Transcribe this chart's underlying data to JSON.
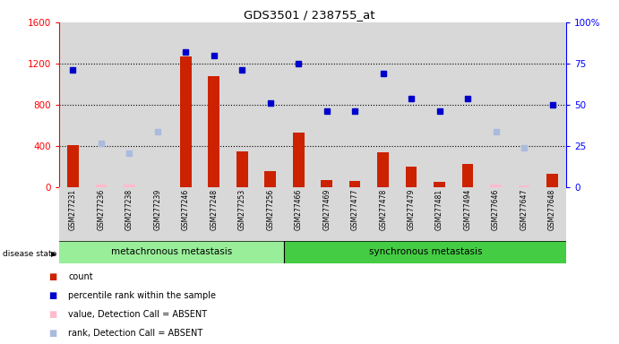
{
  "title": "GDS3501 / 238755_at",
  "samples": [
    "GSM277231",
    "GSM277236",
    "GSM277238",
    "GSM277239",
    "GSM277246",
    "GSM277248",
    "GSM277253",
    "GSM277256",
    "GSM277466",
    "GSM277469",
    "GSM277477",
    "GSM277478",
    "GSM277479",
    "GSM277481",
    "GSM277494",
    "GSM277646",
    "GSM277647",
    "GSM277648"
  ],
  "count_values": [
    410,
    null,
    null,
    null,
    1270,
    1080,
    350,
    155,
    530,
    70,
    60,
    340,
    205,
    55,
    230,
    null,
    null,
    130
  ],
  "count_absent": [
    null,
    30,
    30,
    null,
    null,
    null,
    null,
    null,
    null,
    null,
    null,
    null,
    null,
    null,
    null,
    30,
    20,
    null
  ],
  "rank_pct": [
    71,
    null,
    null,
    null,
    82,
    80,
    71,
    51,
    75,
    46,
    46,
    69,
    54,
    46,
    54,
    null,
    null,
    50
  ],
  "rank_absent_pct": [
    null,
    27,
    21,
    34,
    null,
    null,
    null,
    null,
    null,
    null,
    null,
    null,
    null,
    null,
    null,
    34,
    24,
    null
  ],
  "metachronous_count": 8,
  "synchronous_count": 10,
  "total_samples": 18,
  "ylim_left": [
    0,
    1600
  ],
  "ylim_right": [
    0,
    100
  ],
  "yticks_left": [
    0,
    400,
    800,
    1200,
    1600
  ],
  "yticks_right": [
    0,
    25,
    50,
    75,
    100
  ],
  "bar_color": "#cc2200",
  "bar_absent_color": "#ffbbcc",
  "dot_color": "#0000cc",
  "dot_absent_color": "#aabbdd",
  "col_bg": "#d8d8d8",
  "meta_bg": "#99ee99",
  "sync_bg": "#44cc44",
  "legend_items": [
    {
      "label": "count",
      "color": "#cc2200"
    },
    {
      "label": "percentile rank within the sample",
      "color": "#0000cc"
    },
    {
      "label": "value, Detection Call = ABSENT",
      "color": "#ffbbcc"
    },
    {
      "label": "rank, Detection Call = ABSENT",
      "color": "#aabbdd"
    }
  ]
}
